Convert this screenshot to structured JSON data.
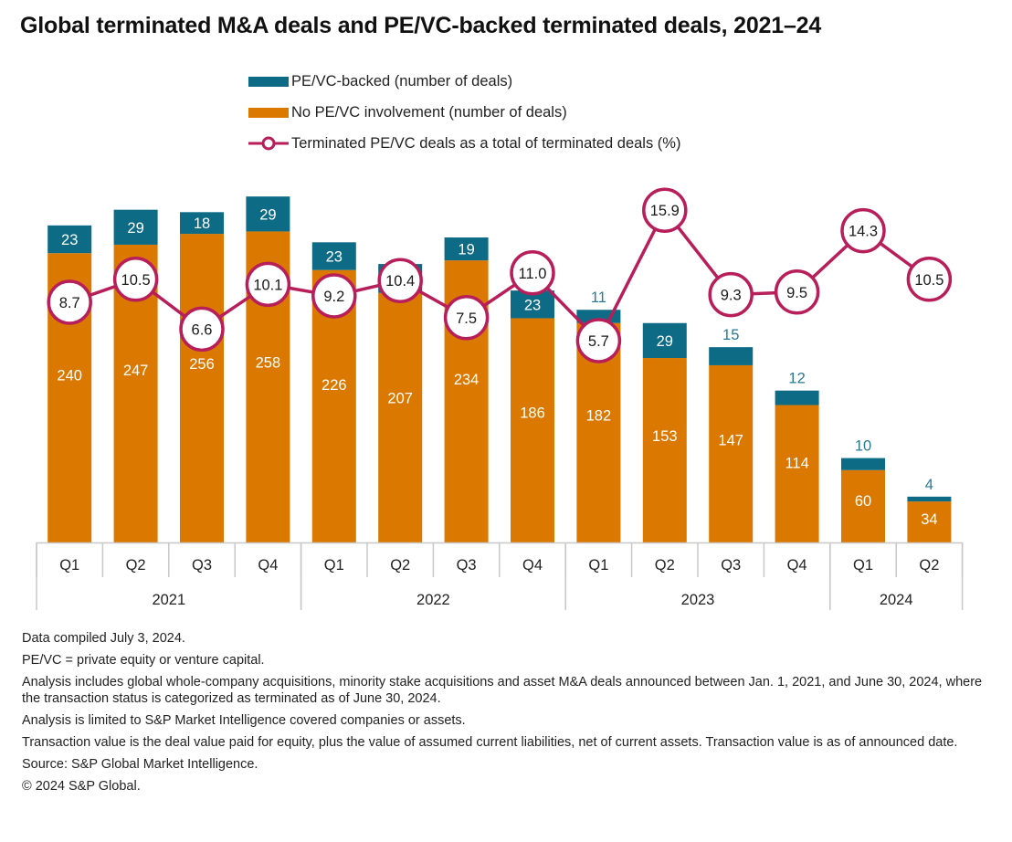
{
  "colors": {
    "pe_vc": "#0e6b85",
    "no_pe_vc": "#db7800",
    "line": "#b81e5a",
    "axis": "#c8c8c8"
  },
  "chart_data": {
    "type": "bar",
    "title": "Global terminated M&A deals and PE/VC-backed terminated deals, 2021–24",
    "xlabel": "",
    "ylabel": "",
    "stacked": true,
    "legend_position": "top",
    "grid": false,
    "categories": [
      "Q1",
      "Q2",
      "Q3",
      "Q4",
      "Q1",
      "Q2",
      "Q3",
      "Q4",
      "Q1",
      "Q2",
      "Q3",
      "Q4",
      "Q1",
      "Q2"
    ],
    "year_groups": [
      {
        "label": "2021",
        "count": 4
      },
      {
        "label": "2022",
        "count": 4
      },
      {
        "label": "2023",
        "count": 4
      },
      {
        "label": "2024",
        "count": 2
      }
    ],
    "series": [
      {
        "name": "No PE/VC involvement (number of deals)",
        "type": "bar",
        "values": [
          240,
          247,
          256,
          258,
          226,
          207,
          234,
          186,
          182,
          153,
          147,
          114,
          60,
          34
        ]
      },
      {
        "name": "PE/VC-backed (number of deals)",
        "type": "bar",
        "values": [
          23,
          29,
          18,
          29,
          23,
          24,
          19,
          23,
          11,
          29,
          15,
          12,
          10,
          4
        ]
      },
      {
        "name": "Terminated PE/VC deals as a total of terminated deals (%)",
        "type": "line",
        "values": [
          8.7,
          10.5,
          6.6,
          10.1,
          9.2,
          10.4,
          7.5,
          11.0,
          5.7,
          15.9,
          9.3,
          9.5,
          14.3,
          10.5
        ]
      }
    ],
    "legend": [
      "PE/VC-backed (number of deals)",
      "No PE/VC involvement (number of deals)",
      "Terminated PE/VC deals as a total of terminated deals (%)"
    ]
  },
  "notes": [
    "Data compiled July 3, 2024.",
    "PE/VC = private equity or venture capital.",
    "Analysis includes global whole-company acquisitions, minority stake acquisitions and asset M&A deals announced between Jan. 1, 2021, and  June 30, 2024, where the transaction status is categorized as terminated as of June 30, 2024.",
    "Analysis is limited to S&P Market Intelligence covered companies or assets.",
    "Transaction value is the deal value paid for equity, plus the value of assumed current liabilities, net of current assets. Transaction value is as of announced date.",
    "Source: S&P Global Market Intelligence.",
    "© 2024 S&P Global."
  ]
}
